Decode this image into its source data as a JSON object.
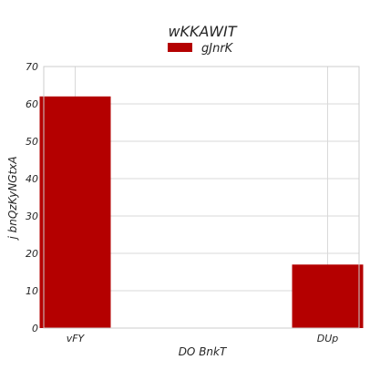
{
  "chart_data": {
    "type": "bar",
    "title": "wKKAWIT",
    "xlabel": "DO BnkT",
    "ylabel": "j bnQzKyNGtxA",
    "categories": [
      "vFY",
      "DUp"
    ],
    "series": [
      {
        "name": "gJnrK",
        "values": [
          62,
          17
        ],
        "color": "#b40000"
      }
    ],
    "ylim": [
      0,
      70
    ],
    "yticks": [
      0,
      10,
      20,
      30,
      40,
      50,
      60,
      70
    ],
    "grid": true,
    "legend_position": "top-center"
  }
}
